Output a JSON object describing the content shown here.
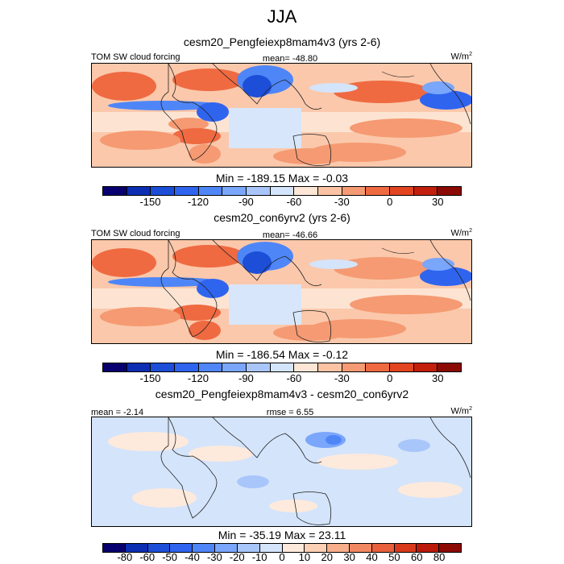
{
  "title": "JJA",
  "panels": [
    {
      "title": "cesm20_Pengfeiexp8mam4v3 (yrs 2-6)",
      "left_label": "TOM SW cloud forcing",
      "center_label": "mean= -48.80",
      "units": "W/m",
      "units_sup": "2",
      "minmax": "Min = -189.15 Max =  -0.03"
    },
    {
      "title": "cesm20_con6yrv2 (yrs 2-6)",
      "left_label": "TOM SW cloud forcing",
      "center_label": "mean= -46.66",
      "units": "W/m",
      "units_sup": "2",
      "minmax": "Min = -186.54 Max =  -0.12"
    },
    {
      "title": "cesm20_Pengfeiexp8mam4v3 - cesm20_con6yrv2",
      "left_label": "mean =  -2.14",
      "center_label": "rmse =   6.55",
      "units": "W/m",
      "units_sup": "2",
      "minmax": "Min = -35.19 Max =  23.11"
    }
  ],
  "colorbar_abs": {
    "colors": [
      "#08006e",
      "#0c2eb2",
      "#1c4ed8",
      "#2f64ef",
      "#4f86f7",
      "#7aa6fb",
      "#a9c6fb",
      "#d4e4fb",
      "#fde6d6",
      "#fbc3a3",
      "#f59a72",
      "#ef6a41",
      "#e24520",
      "#c21f0c",
      "#8c0a04"
    ],
    "labels": [
      "-150",
      "-120",
      "-90",
      "-60",
      "-30",
      "0",
      "30"
    ]
  },
  "colorbar_diff": {
    "colors": [
      "#08006e",
      "#0c2eb2",
      "#1c4ed8",
      "#2f64ef",
      "#4f86f7",
      "#7aa6fb",
      "#a9c6fb",
      "#d4e4fb",
      "#fdeadc",
      "#fbd0b4",
      "#f8ae8a",
      "#f28861",
      "#e9603c",
      "#d93a1c",
      "#bb1a0a",
      "#8c0a04"
    ],
    "labels": [
      "-80",
      "-60",
      "-50",
      "-40",
      "-30",
      "-20",
      "-10",
      "0",
      "10",
      "20",
      "30",
      "40",
      "50",
      "60",
      "80"
    ]
  }
}
